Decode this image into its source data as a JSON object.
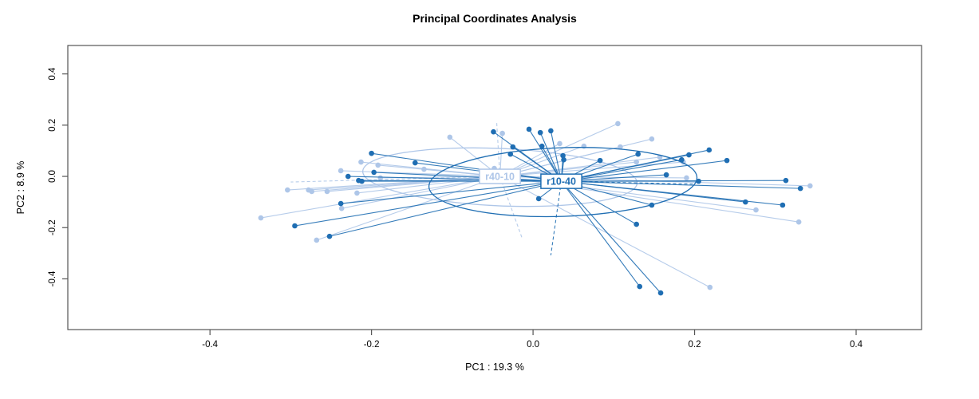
{
  "chart_data": {
    "type": "scatter",
    "variant": "pcoa-ordination-spider",
    "title": "Principal Coordinates Analysis",
    "xlabel": "PC1 : 19.3 %",
    "ylabel": "PC2 : 8.9 %",
    "axes": {
      "xlim": [
        -0.576,
        0.481
      ],
      "ylim": [
        -0.598,
        0.511
      ],
      "xticks": {
        "values": [
          -0.4,
          -0.2,
          0.0,
          0.2,
          0.4
        ],
        "labels": [
          "-0.4",
          "-0.2",
          "0.0",
          "0.2",
          "0.4"
        ]
      },
      "yticks": {
        "values": [
          -0.4,
          -0.2,
          0.0,
          0.2,
          0.4
        ],
        "labels": [
          "-0.4",
          "-0.2",
          "0.0",
          "0.2",
          "0.4"
        ]
      },
      "grid": false,
      "box_color": "#555555",
      "text_color": "#000000",
      "background": "#ffffff"
    },
    "legend": {
      "position": "none"
    },
    "groups": [
      {
        "name": "r40-10",
        "color": "#aec6e8",
        "centroid": [
          -0.041,
          0.0
        ],
        "ellipse": {
          "cx": -0.041,
          "cy": -0.003,
          "rx": 0.17,
          "ry": 0.112,
          "rotation_deg": 2.5
        },
        "dashed_to": [
          [
            -0.045,
            0.21
          ],
          [
            -0.013,
            -0.246
          ],
          [
            -0.3,
            -0.022
          ]
        ],
        "points": [
          [
            -0.213,
            0.056
          ],
          [
            -0.238,
            0.022
          ],
          [
            -0.304,
            -0.053
          ],
          [
            -0.278,
            -0.053
          ],
          [
            -0.274,
            -0.059
          ],
          [
            -0.255,
            -0.059
          ],
          [
            -0.218,
            -0.065
          ],
          [
            -0.237,
            -0.125
          ],
          [
            -0.337,
            -0.162
          ],
          [
            -0.268,
            -0.249
          ],
          [
            -0.192,
            0.044
          ],
          [
            -0.135,
            0.028
          ],
          [
            -0.189,
            -0.006
          ],
          [
            -0.103,
            0.153
          ],
          [
            -0.048,
            0.031
          ],
          [
            -0.038,
            0.168
          ],
          [
            0.033,
            0.128
          ],
          [
            0.063,
            0.118
          ],
          [
            0.105,
            0.206
          ],
          [
            0.108,
            0.115
          ],
          [
            0.128,
            0.056
          ],
          [
            0.147,
            0.146
          ],
          [
            0.157,
            0.075
          ],
          [
            0.186,
            0.056
          ],
          [
            0.19,
            -0.006
          ],
          [
            0.219,
            -0.433
          ],
          [
            0.276,
            -0.131
          ],
          [
            0.343,
            -0.037
          ],
          [
            0.329,
            -0.178
          ]
        ]
      },
      {
        "name": "r10-40",
        "color": "#1f6eb3",
        "centroid": [
          0.035,
          -0.019
        ],
        "ellipse": {
          "cx": 0.037,
          "cy": -0.022,
          "rx": 0.166,
          "ry": 0.134,
          "rotation_deg": -2
        },
        "dashed_to": [
          [
            0.022,
            -0.308
          ],
          [
            0.2,
            -0.03
          ]
        ],
        "points": [
          [
            -0.2,
            0.09
          ],
          [
            -0.229,
            0.0
          ],
          [
            -0.216,
            -0.016
          ],
          [
            -0.212,
            -0.019
          ],
          [
            -0.238,
            -0.106
          ],
          [
            -0.295,
            -0.193
          ],
          [
            -0.252,
            -0.234
          ],
          [
            -0.146,
            0.053
          ],
          [
            -0.197,
            0.016
          ],
          [
            -0.049,
            0.174
          ],
          [
            -0.025,
            0.115
          ],
          [
            -0.028,
            0.087
          ],
          [
            -0.005,
            0.184
          ],
          [
            0.009,
            0.171
          ],
          [
            0.022,
            0.178
          ],
          [
            0.011,
            0.118
          ],
          [
            0.037,
            0.081
          ],
          [
            0.038,
            0.065
          ],
          [
            0.083,
            0.062
          ],
          [
            0.13,
            0.087
          ],
          [
            0.165,
            0.006
          ],
          [
            0.184,
            0.065
          ],
          [
            0.193,
            0.084
          ],
          [
            0.205,
            -0.019
          ],
          [
            0.218,
            0.103
          ],
          [
            0.24,
            0.062
          ],
          [
            0.263,
            -0.1
          ],
          [
            0.309,
            -0.112
          ],
          [
            0.313,
            -0.016
          ],
          [
            0.331,
            -0.047
          ],
          [
            0.147,
            -0.112
          ],
          [
            0.128,
            -0.187
          ],
          [
            0.007,
            -0.087
          ],
          [
            0.132,
            -0.43
          ],
          [
            0.158,
            -0.455
          ]
        ]
      }
    ]
  }
}
